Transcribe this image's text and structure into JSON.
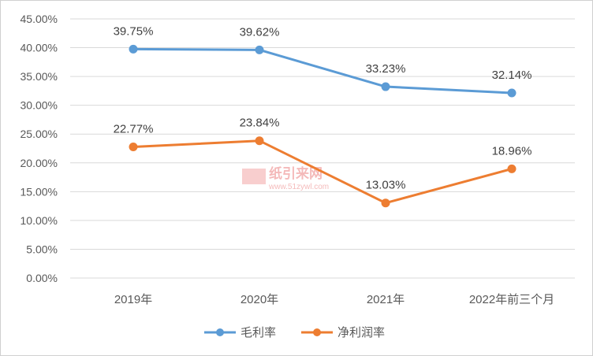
{
  "chart_data": {
    "type": "line",
    "categories": [
      "2019年",
      "2020年",
      "2021年",
      "2022年前三个月"
    ],
    "series": [
      {
        "name": "毛利率",
        "color": "#5b9bd5",
        "values": [
          39.75,
          39.62,
          33.23,
          32.14
        ],
        "labels": [
          "39.75%",
          "39.62%",
          "33.23%",
          "32.14%"
        ]
      },
      {
        "name": "净利润率",
        "color": "#ed7d31",
        "values": [
          22.77,
          23.84,
          13.03,
          18.96
        ],
        "labels": [
          "22.77%",
          "23.84%",
          "13.03%",
          "18.96%"
        ]
      }
    ],
    "ylim": [
      0,
      45
    ],
    "ystep": 5,
    "ytick_labels": [
      "0.00%",
      "5.00%",
      "10.00%",
      "15.00%",
      "20.00%",
      "25.00%",
      "30.00%",
      "35.00%",
      "40.00%",
      "45.00%"
    ],
    "grid": true,
    "legend_position": "bottom"
  },
  "watermark": {
    "text": "纸引来网",
    "url": "www.51zywl.com"
  }
}
